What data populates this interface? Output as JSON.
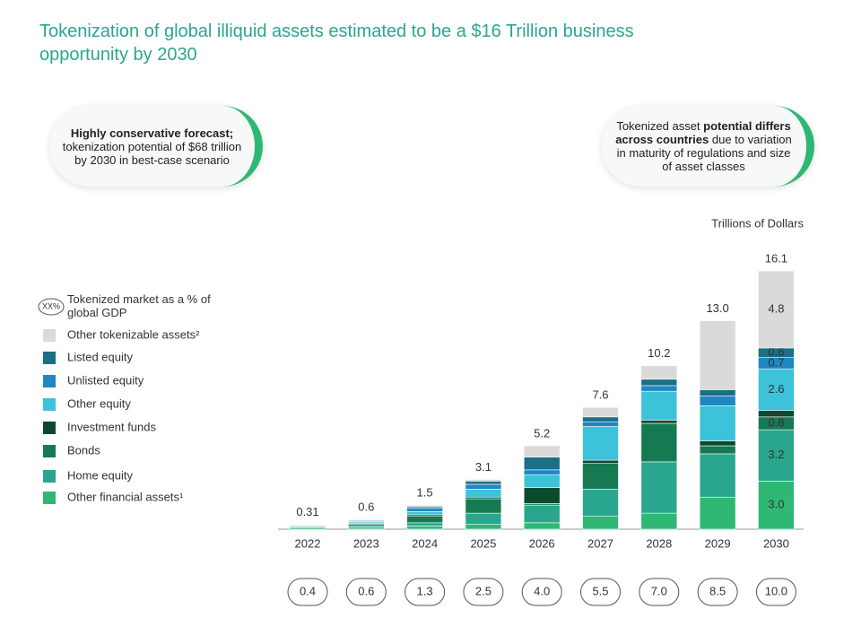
{
  "chart_data": {
    "type": "stacked-bar",
    "title": "Tokenization of global illiquid assets estimated to be a $16 Trillion business opportunity by 2030",
    "callout_left": {
      "bold": "Highly conservative forecast;",
      "text": "tokenization potential of $68 trillion by 2030 in best-case scenario"
    },
    "callout_right": {
      "before": "Tokenized asset",
      "bold": "potential differs across countries",
      "after": "due to variation in maturity of regulations and size of asset classes"
    },
    "unit_label": "Trillions of Dollars",
    "gdp_legend": {
      "icon": "XX%",
      "text": "Tokenized market as a % of global GDP"
    },
    "categories": [
      "2022",
      "2023",
      "2024",
      "2025",
      "2026",
      "2027",
      "2028",
      "2029",
      "2030"
    ],
    "ylim": [
      0,
      17
    ],
    "series": [
      {
        "name": "Other financial assets¹",
        "color": "#2fb874",
        "values": [
          0.1,
          0.1,
          0.2,
          0.3,
          0.4,
          0.8,
          1.0,
          2.0,
          3.0
        ],
        "value_labels": [
          null,
          null,
          null,
          null,
          null,
          null,
          null,
          null,
          "3.0"
        ]
      },
      {
        "name": "Home equity",
        "color": "#2aa68e",
        "values": [
          0.05,
          0.1,
          0.2,
          0.7,
          1.1,
          1.7,
          3.2,
          2.7,
          3.2
        ],
        "value_labels": [
          null,
          null,
          null,
          null,
          null,
          null,
          null,
          null,
          "3.2"
        ]
      },
      {
        "name": "Bonds",
        "color": "#157a52",
        "values": [
          0.05,
          0.1,
          0.4,
          0.9,
          0.1,
          1.6,
          2.4,
          0.5,
          0.8
        ],
        "value_labels": [
          null,
          null,
          null,
          null,
          null,
          null,
          null,
          null,
          "0.8"
        ]
      },
      {
        "name": "Investment funds",
        "color": "#0c4a2d",
        "values": [
          0.02,
          0.05,
          0.1,
          0.1,
          1.0,
          0.2,
          0.2,
          0.3,
          0.4
        ],
        "value_labels": [
          null,
          null,
          null,
          null,
          null,
          null,
          null,
          null,
          "0.4"
        ]
      },
      {
        "name": "Other equity",
        "color": "#3cc2d9",
        "values": [
          0.04,
          0.1,
          0.2,
          0.5,
          0.8,
          2.1,
          1.8,
          2.2,
          2.6
        ],
        "value_labels": [
          null,
          null,
          null,
          null,
          null,
          null,
          null,
          null,
          "2.6"
        ]
      },
      {
        "name": "Unlisted equity",
        "color": "#1f87c2",
        "values": [
          0.02,
          0.05,
          0.2,
          0.3,
          0.3,
          0.3,
          0.35,
          0.6,
          0.7
        ],
        "value_labels": [
          null,
          null,
          null,
          null,
          null,
          null,
          null,
          null,
          "0.7"
        ]
      },
      {
        "name": "Listed equity",
        "color": "#1b6f86",
        "values": [
          0.02,
          0.05,
          0.1,
          0.2,
          0.8,
          0.3,
          0.4,
          0.4,
          0.6
        ],
        "value_labels": [
          null,
          null,
          null,
          null,
          null,
          null,
          null,
          null,
          "0.6"
        ]
      },
      {
        "name": "Other tokenizable assets²",
        "color": "#dadada",
        "values": [
          0.01,
          0.05,
          0.1,
          0.1,
          0.7,
          0.6,
          0.85,
          4.3,
          4.8
        ],
        "value_labels": [
          null,
          null,
          null,
          null,
          null,
          null,
          null,
          null,
          "4.8"
        ]
      }
    ],
    "totals": [
      0.31,
      0.6,
      1.5,
      3.1,
      5.2,
      7.6,
      10.2,
      13,
      16.1
    ],
    "total_labels": [
      "0.31",
      "0.6",
      "1.5",
      "3.1",
      "5.2",
      "7.6",
      "10.2",
      "13.0",
      "16.1"
    ],
    "gdp_share": [
      0.4,
      0.6,
      1.3,
      2.5,
      4,
      5.5,
      7,
      8.5,
      10
    ],
    "gdp_share_labels": [
      "0.4",
      "0.6",
      "1.3",
      "2.5",
      "4.0",
      "5.5",
      "7.0",
      "8.5",
      "10.0"
    ]
  }
}
